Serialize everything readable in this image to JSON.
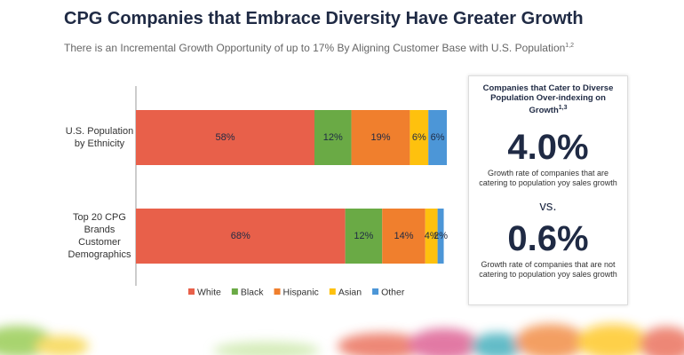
{
  "chart_data": {
    "type": "stacked-bar-horizontal",
    "title": "CPG Companies that Embrace Diversity Have Greater Growth",
    "subtitle": "There is an Incremental Growth Opportunity of up to 17% By Aligning Customer Base with U.S. Population",
    "subtitle_superscript": "1,2",
    "categories": [
      "U.S. Population by Ethnicity",
      "Top 20 CPG Brands Customer Demographics"
    ],
    "series": [
      {
        "name": "White",
        "color": "#e8604a",
        "values": [
          58,
          68
        ],
        "value_labels": [
          "58%",
          "68%"
        ]
      },
      {
        "name": "Black",
        "color": "#6aaa45",
        "values": [
          12,
          12
        ],
        "value_labels": [
          "12%",
          "12%"
        ]
      },
      {
        "name": "Hispanic",
        "color": "#f07f2d",
        "values": [
          19,
          14
        ],
        "value_labels": [
          "19%",
          "14%"
        ]
      },
      {
        "name": "Asian",
        "color": "#fec10e",
        "values": [
          6,
          4
        ],
        "value_labels": [
          "6%",
          "4%"
        ]
      },
      {
        "name": "Other",
        "color": "#4c96d7",
        "values": [
          6,
          2
        ],
        "value_labels": [
          "6%",
          "2%"
        ]
      }
    ],
    "legend": "bottom"
  },
  "panel": {
    "title": "Companies that Cater to Diverse Population Over-indexing on Growth",
    "title_superscript": "1,3",
    "stat_1": "4.0%",
    "stat_1_text": "Growth rate of companies that are catering to population yoy sales growth",
    "separator": "vs.",
    "stat_2": "0.6%",
    "stat_2_text": "Growth rate of companies that are not catering to population yoy sales growth"
  }
}
